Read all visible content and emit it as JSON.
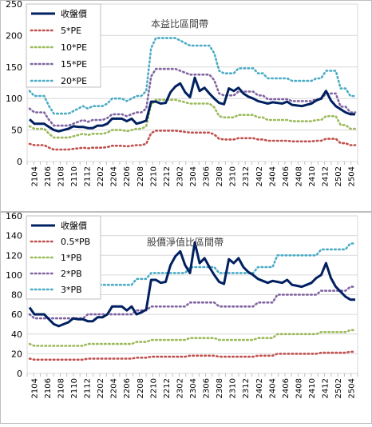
{
  "x_labels": [
    "2104",
    "2106",
    "2108",
    "2110",
    "2112",
    "2202",
    "2204",
    "2206",
    "2208",
    "2210",
    "2212",
    "2302",
    "2304",
    "2306",
    "2308",
    "2310",
    "2312",
    "2402",
    "2404",
    "2406",
    "2408",
    "2410",
    "2412",
    "2502",
    "2504"
  ],
  "chart_data": [
    {
      "type": "line",
      "title": "本益比區間帶",
      "ylim": [
        0,
        250
      ],
      "yticks": [
        0,
        50,
        100,
        150,
        200,
        250
      ],
      "legend_position": "top-left",
      "grid": true,
      "series": [
        {
          "name": "收盤價",
          "color": "#002060",
          "dash": false,
          "width": 3,
          "values": [
            67,
            60,
            60,
            60,
            55,
            50,
            48,
            50,
            52,
            56,
            55,
            55,
            53,
            53,
            57,
            57,
            60,
            68,
            68,
            68,
            64,
            68,
            60,
            62,
            65,
            95,
            95,
            92,
            93,
            110,
            119,
            124,
            110,
            102,
            133,
            112,
            117,
            108,
            100,
            93,
            91,
            116,
            112,
            117,
            108,
            103,
            100,
            96,
            94,
            92,
            94,
            93,
            92,
            95,
            90,
            89,
            88,
            90,
            92,
            97,
            100,
            112,
            97,
            88,
            83,
            78,
            75,
            75
          ]
        },
        {
          "name": "5*PE",
          "color": "#c0504d",
          "dash": true,
          "width": 2,
          "values": [
            28,
            26,
            26,
            26,
            22,
            19,
            19,
            19,
            19,
            20,
            21,
            22,
            21,
            22,
            22,
            22,
            23,
            25,
            25,
            25,
            24,
            25,
            26,
            26,
            28,
            45,
            49,
            49,
            49,
            49,
            49,
            48,
            47,
            46,
            46,
            46,
            46,
            46,
            43,
            36,
            35,
            35,
            35,
            37,
            37,
            37,
            37,
            35,
            35,
            33,
            33,
            33,
            33,
            33,
            32,
            32,
            32,
            32,
            32,
            33,
            33,
            36,
            36,
            36,
            29,
            29,
            26,
            26
          ]
        },
        {
          "name": "10*PE",
          "color": "#9bbb59",
          "dash": true,
          "width": 2,
          "values": [
            56,
            52,
            52,
            52,
            44,
            38,
            38,
            38,
            38,
            40,
            42,
            44,
            42,
            44,
            44,
            44,
            46,
            50,
            50,
            50,
            48,
            50,
            52,
            52,
            56,
            90,
            98,
            98,
            98,
            98,
            98,
            96,
            94,
            92,
            92,
            92,
            92,
            92,
            86,
            72,
            70,
            70,
            70,
            74,
            74,
            74,
            74,
            70,
            70,
            66,
            66,
            66,
            66,
            66,
            64,
            64,
            64,
            64,
            64,
            66,
            66,
            72,
            72,
            72,
            58,
            58,
            52,
            52
          ]
        },
        {
          "name": "15*PE",
          "color": "#8064a2",
          "dash": true,
          "width": 2,
          "values": [
            84,
            78,
            78,
            78,
            66,
            57,
            57,
            57,
            57,
            60,
            63,
            66,
            63,
            66,
            66,
            66,
            69,
            75,
            75,
            75,
            72,
            75,
            78,
            78,
            84,
            135,
            147,
            147,
            147,
            147,
            147,
            144,
            141,
            138,
            138,
            138,
            138,
            138,
            129,
            108,
            105,
            105,
            105,
            111,
            111,
            111,
            111,
            105,
            105,
            99,
            99,
            99,
            99,
            99,
            96,
            96,
            96,
            96,
            96,
            99,
            99,
            108,
            108,
            108,
            87,
            87,
            78,
            78
          ]
        },
        {
          "name": "20*PE",
          "color": "#4bacc6",
          "dash": true,
          "width": 2,
          "values": [
            112,
            104,
            104,
            104,
            88,
            76,
            76,
            76,
            76,
            80,
            84,
            88,
            84,
            88,
            88,
            88,
            92,
            100,
            100,
            100,
            96,
            100,
            104,
            104,
            112,
            180,
            196,
            196,
            196,
            196,
            196,
            192,
            188,
            184,
            184,
            184,
            184,
            184,
            172,
            144,
            140,
            140,
            140,
            148,
            148,
            148,
            148,
            140,
            140,
            132,
            132,
            132,
            132,
            132,
            128,
            128,
            128,
            128,
            128,
            132,
            132,
            144,
            144,
            144,
            116,
            116,
            104,
            104
          ]
        }
      ]
    },
    {
      "type": "line",
      "title": "股價淨值比區間帶",
      "ylim": [
        0,
        160
      ],
      "yticks": [
        0,
        20,
        40,
        60,
        80,
        100,
        120,
        140,
        160
      ],
      "legend_position": "top-left",
      "grid": true,
      "series": [
        {
          "name": "收盤價",
          "color": "#002060",
          "dash": false,
          "width": 3,
          "values": [
            67,
            60,
            60,
            60,
            55,
            50,
            48,
            50,
            52,
            56,
            55,
            55,
            53,
            53,
            57,
            57,
            60,
            68,
            68,
            68,
            64,
            68,
            60,
            62,
            65,
            95,
            95,
            92,
            93,
            110,
            119,
            124,
            110,
            102,
            133,
            112,
            117,
            108,
            100,
            93,
            91,
            116,
            112,
            117,
            108,
            103,
            100,
            96,
            94,
            92,
            94,
            93,
            92,
            95,
            90,
            89,
            88,
            90,
            92,
            97,
            100,
            112,
            97,
            88,
            83,
            78,
            75,
            75
          ]
        },
        {
          "name": "0.5*PB",
          "color": "#c0504d",
          "dash": true,
          "width": 2,
          "values": [
            15,
            14,
            14,
            14,
            14,
            14,
            14,
            14,
            14,
            14,
            14,
            14,
            15,
            15,
            15,
            15,
            15,
            15,
            15,
            15,
            15,
            15,
            16,
            16,
            16,
            17,
            17,
            17,
            17,
            17,
            17,
            17,
            17,
            18,
            18,
            18,
            18,
            18,
            18,
            17,
            17,
            17,
            17,
            17,
            17,
            17,
            17,
            18,
            18,
            18,
            18,
            20,
            20,
            20,
            20,
            20,
            20,
            20,
            20,
            20,
            21,
            21,
            21,
            21,
            21,
            21,
            22,
            22
          ]
        },
        {
          "name": "1*PB",
          "color": "#9bbb59",
          "dash": true,
          "width": 2,
          "values": [
            30,
            28,
            28,
            28,
            28,
            28,
            28,
            28,
            28,
            28,
            28,
            28,
            30,
            30,
            30,
            30,
            30,
            30,
            30,
            30,
            30,
            30,
            32,
            32,
            32,
            34,
            34,
            34,
            34,
            34,
            34,
            34,
            34,
            36,
            36,
            36,
            36,
            36,
            36,
            34,
            34,
            34,
            34,
            34,
            34,
            34,
            34,
            36,
            36,
            36,
            36,
            40,
            40,
            40,
            40,
            40,
            40,
            40,
            40,
            40,
            42,
            42,
            42,
            42,
            42,
            42,
            44,
            44
          ]
        },
        {
          "name": "2*PB",
          "color": "#8064a2",
          "dash": true,
          "width": 2,
          "values": [
            60,
            56,
            56,
            56,
            56,
            56,
            56,
            56,
            56,
            56,
            56,
            56,
            60,
            60,
            60,
            60,
            60,
            60,
            60,
            60,
            60,
            60,
            64,
            64,
            64,
            68,
            68,
            68,
            68,
            68,
            68,
            68,
            68,
            72,
            72,
            72,
            72,
            72,
            72,
            68,
            68,
            68,
            68,
            68,
            68,
            68,
            68,
            72,
            72,
            72,
            72,
            80,
            80,
            80,
            80,
            80,
            80,
            80,
            80,
            80,
            84,
            84,
            84,
            84,
            84,
            84,
            88,
            88
          ]
        },
        {
          "name": "3*PB",
          "color": "#4bacc6",
          "dash": true,
          "width": 2,
          "values": [
            90,
            84,
            84,
            84,
            84,
            84,
            84,
            84,
            84,
            84,
            84,
            84,
            90,
            90,
            90,
            90,
            90,
            90,
            90,
            90,
            90,
            90,
            96,
            96,
            96,
            102,
            102,
            102,
            102,
            102,
            102,
            102,
            102,
            108,
            108,
            108,
            108,
            108,
            108,
            102,
            102,
            102,
            102,
            102,
            102,
            102,
            102,
            108,
            108,
            108,
            108,
            120,
            120,
            120,
            120,
            120,
            120,
            120,
            120,
            120,
            126,
            126,
            126,
            126,
            126,
            126,
            132,
            132
          ]
        }
      ]
    }
  ]
}
